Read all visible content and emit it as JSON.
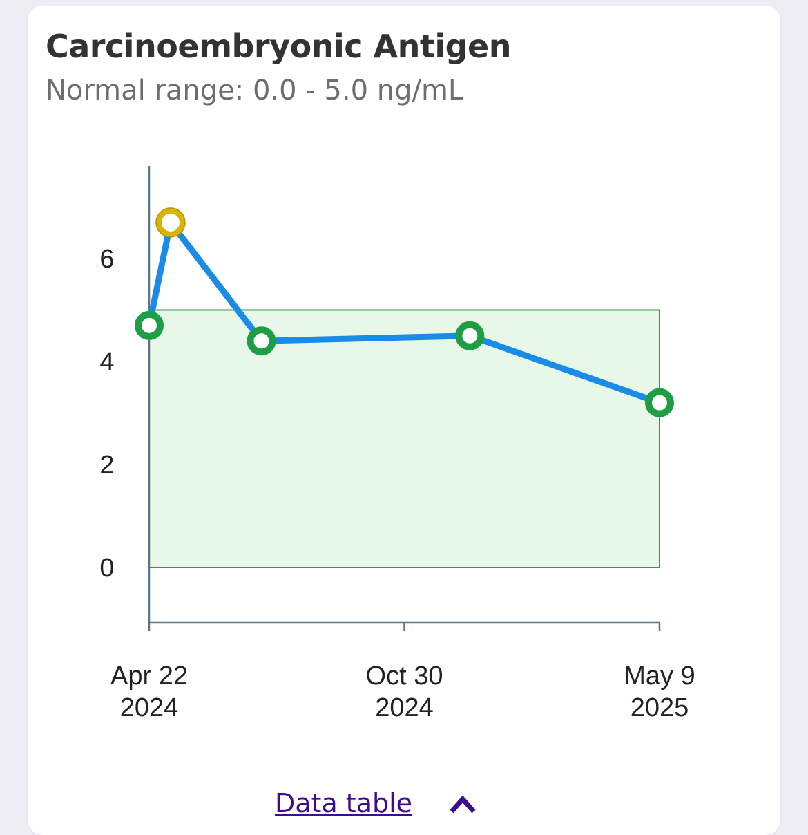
{
  "card": {
    "title": "Carcinoembryonic Antigen",
    "subtitle": "Normal range: 0.0 - 5.0 ng/mL",
    "data_table_label": "Data table",
    "caret_icon": "chevron-up-icon"
  },
  "colors": {
    "line": "#1a8ce8",
    "normal_point": "#1d9e43",
    "abnormal_point": "#d9b400",
    "range_fill": "#e8f8e8",
    "range_stroke": "#2e9e44",
    "axis": "#5b7785"
  },
  "chart_data": {
    "type": "line",
    "title": "Carcinoembryonic Antigen",
    "subtitle": "Normal range: 0.0 - 5.0 ng/mL",
    "xlabel": "",
    "ylabel": "",
    "y_ticks": [
      0,
      2,
      4,
      6
    ],
    "ylim": [
      -1.07,
      7.6
    ],
    "normal_range": [
      0.0,
      5.0
    ],
    "x_range": [
      "2024-04-22",
      "2025-05-09"
    ],
    "x_ticks": [
      {
        "date": "2024-04-22",
        "line1": "Apr 22",
        "line2": "2024"
      },
      {
        "date": "2024-10-30",
        "line1": "Oct 30",
        "line2": "2024"
      },
      {
        "date": "2025-05-09",
        "line1": "May 9",
        "line2": "2025"
      }
    ],
    "series": [
      {
        "points": [
          {
            "date": "2024-04-22",
            "value": 4.7,
            "status": "normal"
          },
          {
            "date": "2024-05-08",
            "value": 6.7,
            "status": "abnormal"
          },
          {
            "date": "2024-07-15",
            "value": 4.4,
            "status": "normal"
          },
          {
            "date": "2024-12-18",
            "value": 4.5,
            "status": "normal"
          },
          {
            "date": "2025-05-09",
            "value": 3.2,
            "status": "normal"
          }
        ]
      }
    ],
    "grid": false
  }
}
